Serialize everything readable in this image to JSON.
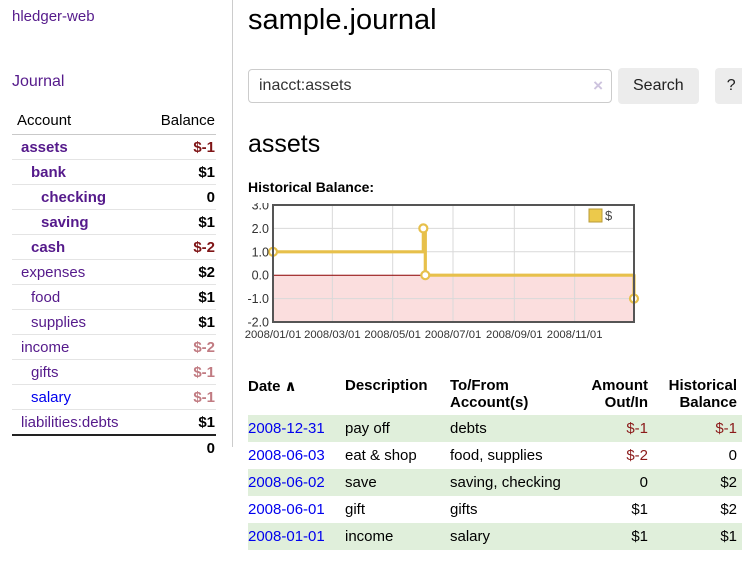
{
  "app": {
    "brand": "hledger-web"
  },
  "sidebar": {
    "journal_link": "Journal",
    "accounts": {
      "account_header": "Account",
      "balance_header": "Balance",
      "rows": [
        {
          "account": "assets",
          "balance": "$-1",
          "depth": 0,
          "bold": true,
          "balance_class": "neg-strong",
          "link": "purple"
        },
        {
          "account": "bank",
          "balance": "$1",
          "depth": 1,
          "bold": true,
          "balance_class": "pos",
          "link": "purple"
        },
        {
          "account": "checking",
          "balance": "0",
          "depth": 2,
          "bold": true,
          "balance_class": "pos",
          "link": "purple"
        },
        {
          "account": "saving",
          "balance": "$1",
          "depth": 2,
          "bold": true,
          "balance_class": "pos",
          "link": "purple"
        },
        {
          "account": "cash",
          "balance": "$-2",
          "depth": 1,
          "bold": true,
          "balance_class": "neg-strong",
          "link": "purple"
        },
        {
          "account": "expenses",
          "balance": "$2",
          "depth": 0,
          "bold": false,
          "balance_class": "pos",
          "link": "purple"
        },
        {
          "account": "food",
          "balance": "$1",
          "depth": 1,
          "bold": false,
          "balance_class": "pos",
          "link": "purple"
        },
        {
          "account": "supplies",
          "balance": "$1",
          "depth": 1,
          "bold": false,
          "balance_class": "pos",
          "link": "purple"
        },
        {
          "account": "income",
          "balance": "$-2",
          "depth": 0,
          "bold": false,
          "balance_class": "neg-soft",
          "link": "purple"
        },
        {
          "account": "gifts",
          "balance": "$-1",
          "depth": 1,
          "bold": false,
          "balance_class": "neg-soft",
          "link": "purple"
        },
        {
          "account": "salary",
          "balance": "$-1",
          "depth": 1,
          "bold": false,
          "balance_class": "neg-soft",
          "link": "blue"
        },
        {
          "account": "liabilities:debts",
          "balance": "$1",
          "depth": 0,
          "bold": false,
          "balance_class": "pos",
          "link": "purple"
        }
      ],
      "total": "0"
    }
  },
  "main": {
    "title": "sample.journal",
    "search": {
      "value": "inacct:assets",
      "clear_icon": "×",
      "button_label": "Search",
      "help_label": "?"
    },
    "account_heading": "assets",
    "chart_label": "Historical Balance:"
  },
  "chart_data": {
    "type": "line",
    "step": true,
    "title": "Historical Balance",
    "series": [
      {
        "name": "$",
        "color": "#e7c04b",
        "points": [
          [
            "2008-01-01",
            1
          ],
          [
            "2008-06-01",
            2
          ],
          [
            "2008-06-03",
            0
          ],
          [
            "2008-12-31",
            -1
          ]
        ]
      }
    ],
    "x_start": "2008-01-01",
    "x_end": "2008-12-31",
    "x_tick_dates": [
      "2008-01-01",
      "2008-03-01",
      "2008-05-01",
      "2008-07-01",
      "2008-09-01",
      "2008-11-01"
    ],
    "x_tick_labels": [
      "2008/01/01",
      "2008/03/01",
      "2008/05/01",
      "2008/07/01",
      "2008/09/01",
      "2008/11/01"
    ],
    "y_ticks": [
      3.0,
      2.0,
      1.0,
      0.0,
      -1.0,
      -2.0
    ],
    "ylim": [
      -2,
      3
    ],
    "grid": true,
    "grid_color": "#d9d9d9",
    "border_color": "#555555",
    "zero_line_color": "#8b0000",
    "negative_fill": "#fbdede",
    "marker": {
      "fill": "#ffffff",
      "stroke": "#e7c04b"
    },
    "legend": {
      "label": "$",
      "swatch_color": "#ecc94b",
      "swatch_border": "#b89b3a",
      "position": "top-right"
    }
  },
  "register": {
    "headers": [
      {
        "label": "Date",
        "sort_icon": "∧",
        "align": "left"
      },
      {
        "label": "Description",
        "align": "left"
      },
      {
        "label": "To/From\nAccount(s)",
        "align": "left"
      },
      {
        "label": "Amount\nOut/In",
        "align": "right"
      },
      {
        "label": "Historical\nBalance",
        "align": "right"
      }
    ],
    "rows": [
      {
        "date": "2008-12-31",
        "description": "pay off",
        "accounts": "debts",
        "amount": "$-1",
        "amount_class": "neg",
        "balance": "$-1",
        "balance_class": "neg"
      },
      {
        "date": "2008-06-03",
        "description": "eat & shop",
        "accounts": "food, supplies",
        "amount": "$-2",
        "amount_class": "neg",
        "balance": "0",
        "balance_class": "pos"
      },
      {
        "date": "2008-06-02",
        "description": "save",
        "accounts": "saving, checking",
        "amount": "0",
        "amount_class": "pos",
        "balance": "$2",
        "balance_class": "pos"
      },
      {
        "date": "2008-06-01",
        "description": "gift",
        "accounts": "gifts",
        "amount": "$1",
        "amount_class": "pos",
        "balance": "$2",
        "balance_class": "pos"
      },
      {
        "date": "2008-01-01",
        "description": "income",
        "accounts": "salary",
        "amount": "$1",
        "amount_class": "pos",
        "balance": "$1",
        "balance_class": "pos"
      }
    ]
  }
}
